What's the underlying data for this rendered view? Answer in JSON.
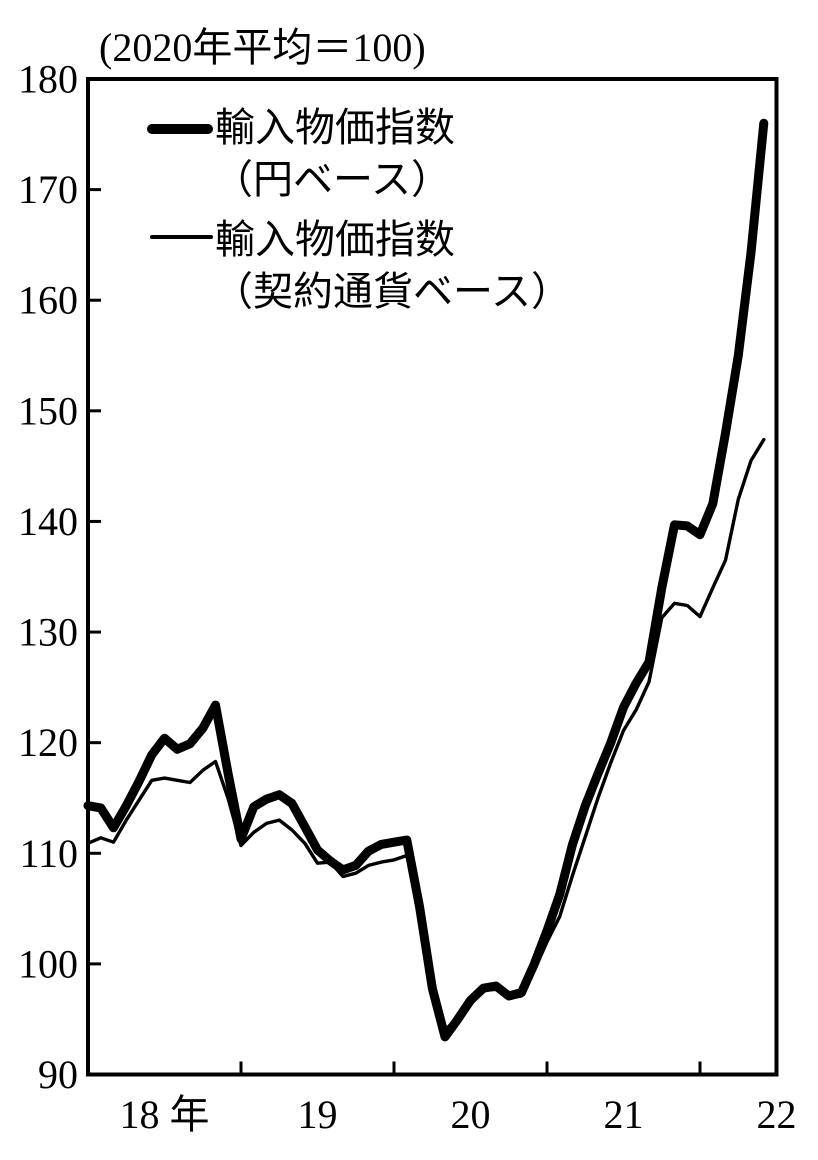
{
  "title": "(2020年平均＝100)",
  "legend": {
    "items": [
      {
        "line1": "輸入物価指数",
        "line2": "（円ベース）",
        "style": "thick"
      },
      {
        "line1": "輸入物価指数",
        "line2": "（契約通貨ベース）",
        "style": "thin"
      }
    ]
  },
  "axes": {
    "y_ticks": [
      180,
      170,
      160,
      150,
      140,
      130,
      120,
      110,
      100,
      90
    ],
    "x_labels": [
      "18 年",
      "19",
      "20",
      "21",
      "22"
    ]
  },
  "chart_data": {
    "type": "line",
    "title": "(2020年平均＝100)",
    "note": "Import price indices, 2020 average = 100, monthly",
    "months": [
      "2018-01",
      "2018-02",
      "2018-03",
      "2018-04",
      "2018-05",
      "2018-06",
      "2018-07",
      "2018-08",
      "2018-09",
      "2018-10",
      "2018-11",
      "2018-12",
      "2019-01",
      "2019-02",
      "2019-03",
      "2019-04",
      "2019-05",
      "2019-06",
      "2019-07",
      "2019-08",
      "2019-09",
      "2019-10",
      "2019-11",
      "2019-12",
      "2020-01",
      "2020-02",
      "2020-03",
      "2020-04",
      "2020-05",
      "2020-06",
      "2020-07",
      "2020-08",
      "2020-09",
      "2020-10",
      "2020-11",
      "2020-12",
      "2021-01",
      "2021-02",
      "2021-03",
      "2021-04",
      "2021-05",
      "2021-06",
      "2021-07",
      "2021-08",
      "2021-09",
      "2021-10",
      "2021-11",
      "2021-12",
      "2022-01",
      "2022-02",
      "2022-03",
      "2022-04",
      "2022-05",
      "2022-06"
    ],
    "series": [
      {
        "name": "輸入物価指数（円ベース）",
        "style": "thick",
        "stroke_width": 9,
        "values": [
          114.3,
          114.1,
          112.3,
          114.3,
          116.5,
          118.9,
          120.4,
          119.4,
          119.9,
          121.3,
          123.4,
          117.1,
          111.3,
          114.2,
          114.9,
          115.3,
          114.5,
          112.4,
          110.3,
          109.3,
          108.5,
          108.9,
          110.2,
          110.8,
          111.0,
          111.2,
          105.2,
          97.8,
          93.4,
          95.0,
          96.7,
          97.8,
          98.0,
          97.1,
          97.4,
          100.0,
          103.0,
          106.3,
          110.8,
          114.3,
          117.2,
          120.0,
          123.2,
          125.4,
          127.3,
          134.0,
          139.7,
          139.6,
          138.8,
          141.6,
          148.0,
          155.0,
          164.3,
          176.0
        ]
      },
      {
        "name": "輸入物価指数（契約通貨ベース）",
        "style": "thin",
        "stroke_width": 3.4,
        "values": [
          110.9,
          111.4,
          111.0,
          113.0,
          114.8,
          116.6,
          116.8,
          116.6,
          116.4,
          117.5,
          118.3,
          114.9,
          110.7,
          111.9,
          112.7,
          113.0,
          112.1,
          110.9,
          109.1,
          109.2,
          107.9,
          108.2,
          108.9,
          109.2,
          109.4,
          109.8,
          105.5,
          98.3,
          94.0,
          95.2,
          96.6,
          97.6,
          97.7,
          96.9,
          97.1,
          99.4,
          102.0,
          104.3,
          108.0,
          111.5,
          115.0,
          118.2,
          121.1,
          123.0,
          125.5,
          131.3,
          132.6,
          132.4,
          131.4,
          134.0,
          136.5,
          142.0,
          145.5,
          147.4
        ]
      }
    ],
    "ylim": [
      90,
      180
    ],
    "y_ticks": [
      90,
      100,
      110,
      120,
      130,
      140,
      150,
      160,
      170,
      180
    ],
    "x_axis": {
      "labels": [
        "18 年",
        "19",
        "20",
        "21",
        "22"
      ],
      "label_position": "mid-year",
      "tick_months": [
        "2019-01",
        "2020-01",
        "2021-01",
        "2022-01"
      ],
      "range": [
        "2018-01",
        "2022-07"
      ]
    },
    "legend_position": "top-left-inside",
    "grid": false,
    "line_color": "#000000",
    "background": "#ffffff"
  }
}
